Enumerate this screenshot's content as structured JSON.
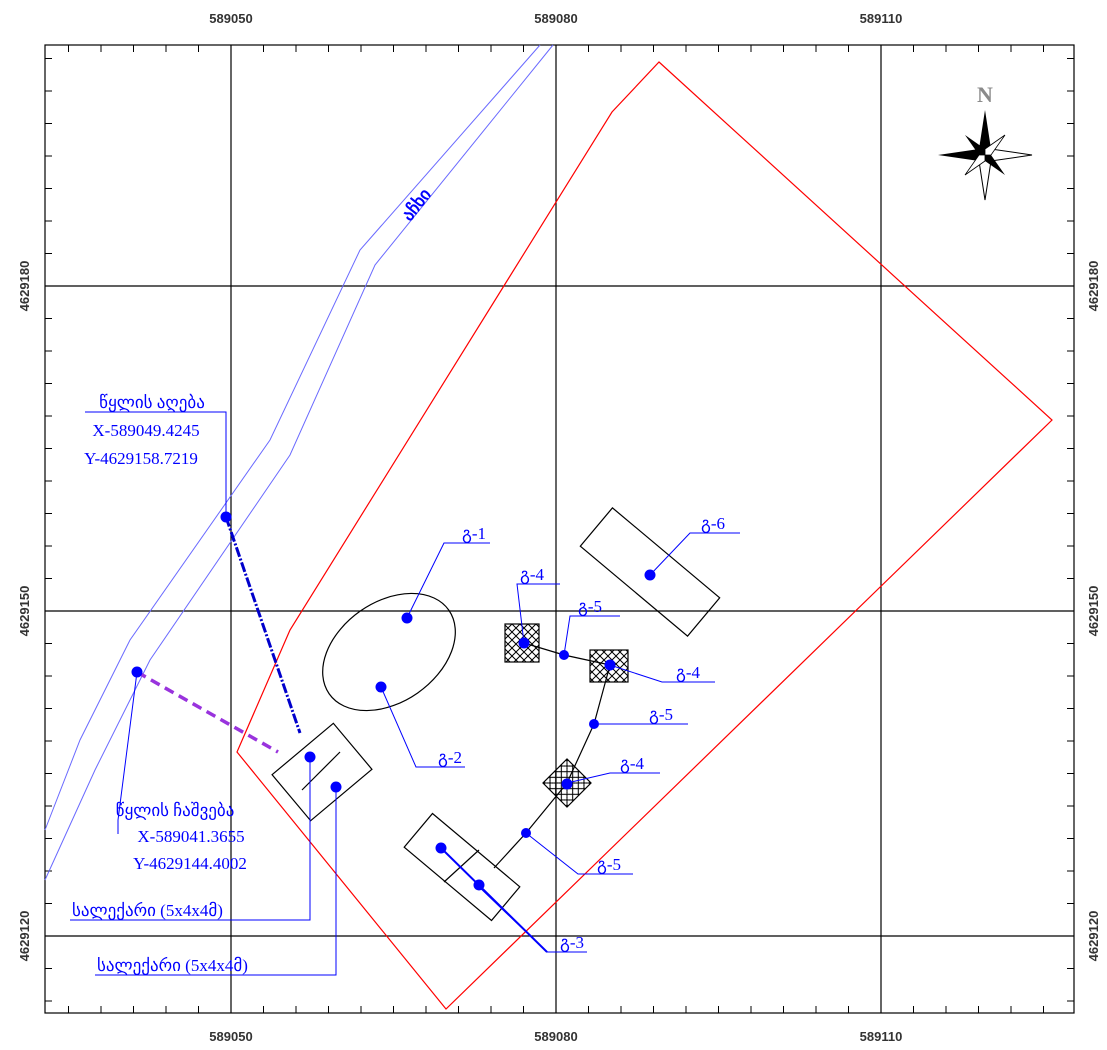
{
  "colors": {
    "grid": "#000000",
    "boundary": "#ff0000",
    "features": "#0000ff",
    "river": "#6a6aff",
    "discharge": "#9933dd",
    "structures": "#000000",
    "north_arrow": "#8a8a8a"
  },
  "axes": {
    "x_ticks": [
      "589050",
      "589080",
      "589110"
    ],
    "y_ticks": [
      "4629180",
      "4629150",
      "4629120"
    ]
  },
  "north_arrow": {
    "label": "N",
    "icon": "compass-rose-icon"
  },
  "river": {
    "label": "აჩხი"
  },
  "labels": {
    "water_intake": {
      "title": "წყლის აღება",
      "x": "X-589049.4245",
      "y": "Y-4629158.7219"
    },
    "water_discharge": {
      "title": "წყლის ჩაშვება",
      "x": "X-589041.3655",
      "y": "Y-4629144.4002"
    },
    "settler_1": "სალექარი (5x4x4მ)",
    "settler_2": "სალექარი (5x4x4მ)",
    "s_1": "გ-1",
    "s_2": "გ-2",
    "s_3": "გ-3",
    "s_4a": "გ-4",
    "s_4b": "გ-4",
    "s_4c": "გ-4",
    "s_5a": "გ-5",
    "s_5b": "გ-5",
    "s_5c": "გ-5",
    "s_6": "გ-6"
  }
}
